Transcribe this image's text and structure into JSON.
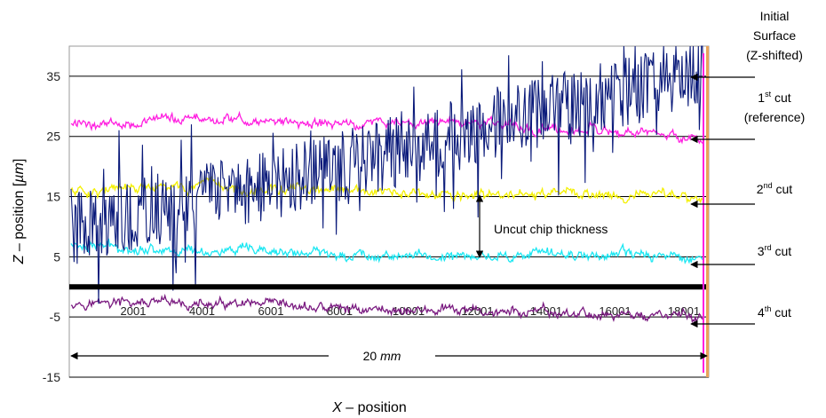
{
  "chart_data": {
    "type": "line",
    "ylabel_prefix": "Z",
    "ylabel_mid": " – position [",
    "ylabel_unit": "µm",
    "ylabel_suffix": "]",
    "xlabel_prefix": "X",
    "xlabel_suffix": " – position",
    "ylim": [
      -15,
      40
    ],
    "yticks": [
      35,
      25,
      15,
      5,
      -5,
      -15
    ],
    "xtick_labels": [
      "2001",
      "4001",
      "6001",
      "8001",
      "10001",
      "12001",
      "14001",
      "16001",
      "18001"
    ],
    "grid": true,
    "colors": {
      "initial_surface": "#0a1a7a",
      "cut1": "#ff1fe0",
      "cut2": "#f4f000",
      "cut3": "#1ce7f2",
      "cut4": "#7a1a80",
      "zero_line": "#000000"
    },
    "series": [
      {
        "name": "Initial Surface (Z-shifted)",
        "key": "initial_surface",
        "mean_start": 10,
        "mean_end": 36,
        "noise": 6
      },
      {
        "name": "1st cut (reference)",
        "key": "cut1",
        "levels": [
          27,
          28,
          27,
          27.5,
          26,
          24.5
        ],
        "noise": 1
      },
      {
        "name": "2nd cut",
        "key": "cut2",
        "levels": [
          16,
          16.5,
          16,
          15,
          15.5,
          15
        ],
        "noise": 1
      },
      {
        "name": "3rd cut",
        "key": "cut3",
        "levels": [
          7,
          6,
          5.5,
          5,
          5.5,
          5
        ],
        "noise": 1
      },
      {
        "name": "4th cut",
        "key": "cut4",
        "levels": [
          -2.5,
          -3,
          -3.5,
          -4,
          -4.5,
          -5
        ],
        "noise": 1
      }
    ],
    "annotations": {
      "initial_line1": "Initial",
      "initial_line2": "Surface",
      "initial_line3": "(Z-shifted)",
      "cut1_base": "1",
      "cut1_sup": "st",
      "cut1_suffix": " cut",
      "cut1_line2": "(reference)",
      "cut2_base": "2",
      "cut2_sup": "nd",
      "cut2_suffix": " cut",
      "cut3_base": "3",
      "cut3_sup": "rd",
      "cut3_suffix": " cut",
      "cut4_base": "4",
      "cut4_sup": "th",
      "cut4_suffix": " cut",
      "uncut_chip": "Uncut chip thickness",
      "span_value": "20 ",
      "span_unit": "mm"
    }
  }
}
